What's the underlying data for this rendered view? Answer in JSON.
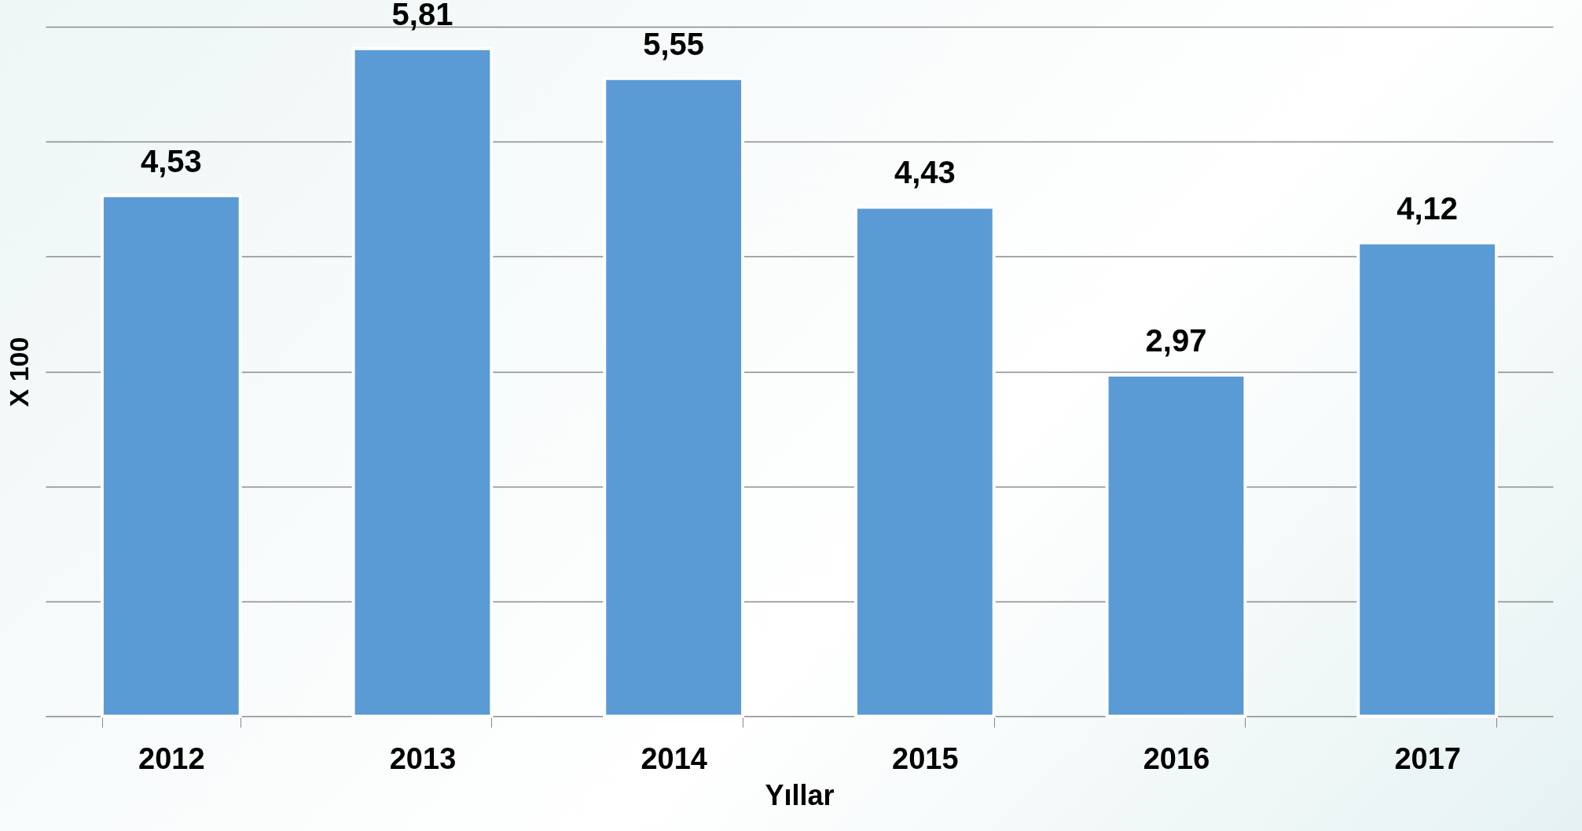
{
  "chart_data": {
    "type": "bar",
    "xlabel": "Yıllar",
    "ylabel": "X 100",
    "categories": [
      "2012",
      "2013",
      "2014",
      "2015",
      "2016",
      "2017"
    ],
    "values": [
      4.53,
      5.81,
      5.55,
      4.43,
      2.97,
      4.12
    ],
    "value_labels": [
      "4,53",
      "5,81",
      "5,55",
      "4,43",
      "2,97",
      "4,12"
    ],
    "color": "#5b9bd5",
    "grid": "y",
    "tick_labels": "x"
  }
}
